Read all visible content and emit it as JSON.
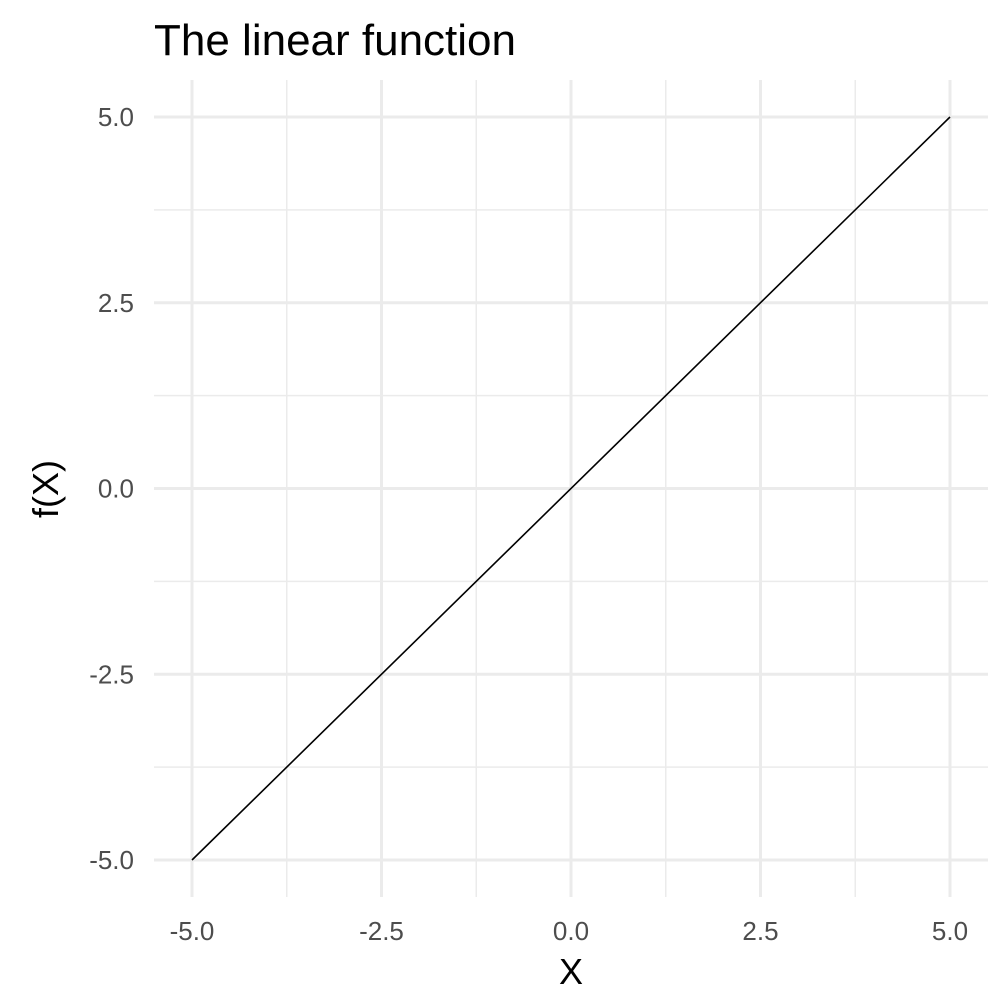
{
  "chart_data": {
    "type": "line",
    "title": "The linear function",
    "xlabel": "X",
    "ylabel": "f(X)",
    "xlim": [
      -5,
      5
    ],
    "ylim": [
      -5,
      5
    ],
    "x_ticks": [
      -5.0,
      -2.5,
      0.0,
      2.5,
      5.0
    ],
    "y_ticks": [
      -5.0,
      -2.5,
      0.0,
      2.5,
      5.0
    ],
    "x_tick_labels": [
      "-5.0",
      "-2.5",
      "0.0",
      "2.5",
      "5.0"
    ],
    "y_tick_labels": [
      "-5.0",
      "-2.5",
      "0.0",
      "2.5",
      "5.0"
    ],
    "x_minor_ticks": [
      -3.75,
      -1.25,
      1.25,
      3.75
    ],
    "y_minor_ticks": [
      -3.75,
      -1.25,
      1.25,
      3.75
    ],
    "grid": true,
    "legend": "none",
    "series": [
      {
        "x": [
          -5,
          5
        ],
        "y": [
          -5,
          5
        ],
        "color": "#000000"
      }
    ],
    "colors": {
      "background": "#ffffff",
      "grid": "#ebebeb",
      "tick_text": "#4d4d4d",
      "line": "#000000"
    }
  }
}
